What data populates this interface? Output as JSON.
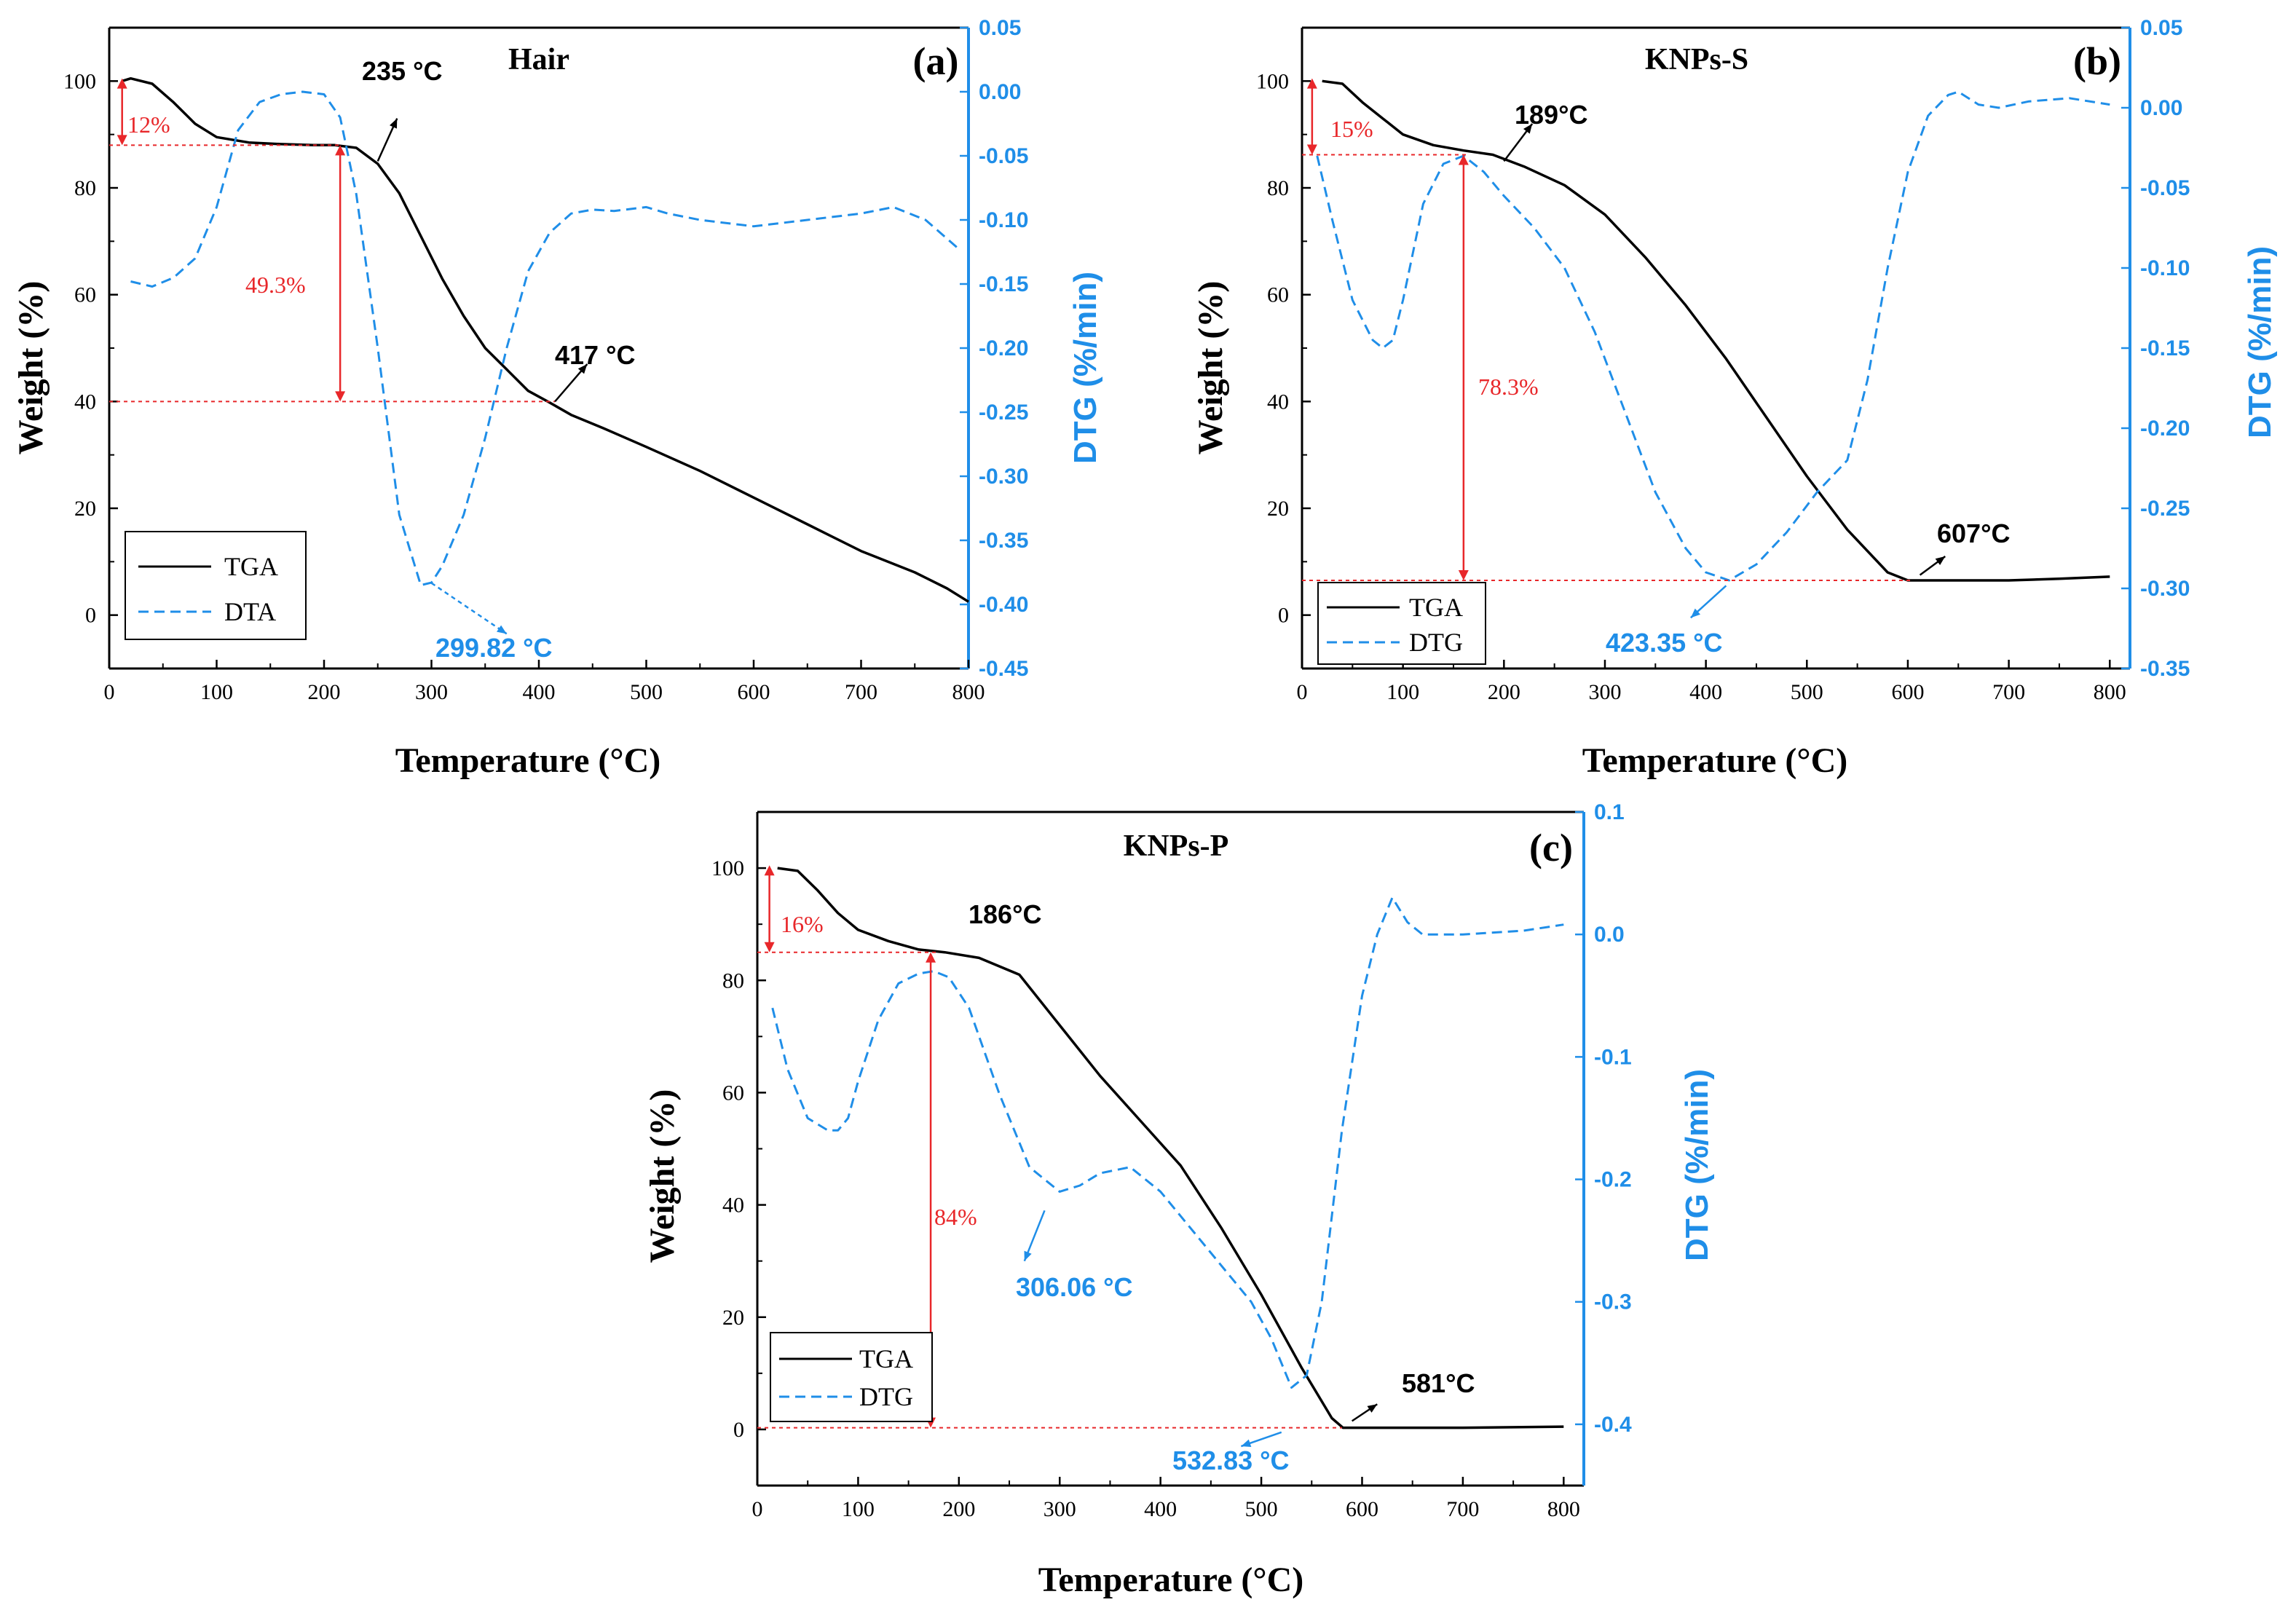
{
  "chart_data": [
    {
      "id": "a",
      "type": "line",
      "title": "Hair",
      "panel_label": "(a)",
      "xlabel": "Temperature (°C)",
      "ylabel": "Weight (%)",
      "y2label": "DTG (%/min)",
      "xlim": [
        0,
        800
      ],
      "ylim": [
        -10,
        110
      ],
      "y2lim": [
        -0.45,
        0.05
      ],
      "xticks": [
        0,
        100,
        200,
        300,
        400,
        500,
        600,
        700,
        800
      ],
      "yticks": [
        0,
        20,
        40,
        60,
        80,
        100
      ],
      "y2ticks": [
        -0.45,
        -0.4,
        -0.35,
        -0.3,
        -0.25,
        -0.2,
        -0.15,
        -0.1,
        -0.05,
        0.0,
        0.05
      ],
      "y2ticklabels": [
        "-0.45",
        "-0.40",
        "-0.35",
        "-0.30",
        "-0.25",
        "-0.20",
        "-0.15",
        "-0.10",
        "-0.05",
        "0.00",
        "0.05"
      ],
      "legend": [
        "TGA",
        "DTA"
      ],
      "series": [
        {
          "name": "TGA",
          "axis": "left",
          "x": [
            12,
            20,
            40,
            60,
            80,
            100,
            130,
            160,
            190,
            210,
            230,
            250,
            270,
            290,
            310,
            330,
            350,
            370,
            390,
            410,
            430,
            460,
            500,
            550,
            600,
            650,
            700,
            750,
            780,
            800
          ],
          "y": [
            100,
            100.5,
            99.5,
            96,
            92,
            89.5,
            88.5,
            88.2,
            88,
            88,
            87.5,
            84.5,
            79,
            71,
            63,
            56,
            50,
            46,
            42,
            39.8,
            37.5,
            35,
            31.5,
            27,
            22,
            17,
            12,
            8,
            5,
            2.5
          ]
        },
        {
          "name": "DTA",
          "axis": "right",
          "x": [
            20,
            40,
            60,
            80,
            100,
            120,
            140,
            160,
            180,
            200,
            215,
            230,
            250,
            270,
            290,
            300,
            310,
            330,
            350,
            370,
            390,
            410,
            430,
            450,
            470,
            500,
            520,
            550,
            600,
            650,
            700,
            730,
            760,
            790
          ],
          "y": [
            -0.148,
            -0.152,
            -0.145,
            -0.13,
            -0.09,
            -0.03,
            -0.008,
            -0.002,
            0.0,
            -0.002,
            -0.02,
            -0.08,
            -0.2,
            -0.33,
            -0.385,
            -0.383,
            -0.37,
            -0.33,
            -0.27,
            -0.2,
            -0.14,
            -0.11,
            -0.095,
            -0.092,
            -0.093,
            -0.09,
            -0.095,
            -0.1,
            -0.105,
            -0.1,
            -0.095,
            -0.09,
            -0.1,
            -0.122
          ]
        }
      ],
      "annotations": [
        {
          "text": "235 °C",
          "color": "black"
        },
        {
          "text": "417 °C",
          "color": "black"
        },
        {
          "text": "299.82 °C",
          "color": "blue"
        },
        {
          "text": "12%",
          "color": "red"
        },
        {
          "text": "49.3%",
          "color": "red"
        }
      ]
    },
    {
      "id": "b",
      "type": "line",
      "title": "KNPs-S",
      "panel_label": "(b)",
      "xlabel": "Temperature (°C)",
      "ylabel": "Weight (%)",
      "y2label": "DTG (%/min)",
      "xlim": [
        0,
        820
      ],
      "ylim": [
        -10,
        110
      ],
      "y2lim": [
        -0.35,
        0.05
      ],
      "xticks": [
        0,
        100,
        200,
        300,
        400,
        500,
        600,
        700,
        800
      ],
      "yticks": [
        0,
        20,
        40,
        60,
        80,
        100
      ],
      "y2ticks": [
        -0.35,
        -0.3,
        -0.25,
        -0.2,
        -0.15,
        -0.1,
        -0.05,
        0.0,
        0.05
      ],
      "y2ticklabels": [
        "-0.35",
        "-0.30",
        "-0.25",
        "-0.20",
        "-0.15",
        "-0.10",
        "-0.05",
        "0.00",
        "0.05"
      ],
      "legend": [
        "TGA",
        "DTG"
      ],
      "series": [
        {
          "name": "TGA",
          "axis": "left",
          "x": [
            20,
            40,
            60,
            80,
            100,
            130,
            160,
            189,
            220,
            260,
            300,
            340,
            380,
            420,
            460,
            500,
            540,
            580,
            600,
            607,
            650,
            700,
            750,
            800
          ],
          "y": [
            100,
            99.5,
            96,
            93,
            90,
            88,
            87,
            86.2,
            84,
            80.5,
            75,
            67,
            58,
            48,
            37,
            26,
            16,
            8,
            6.5,
            6.5,
            6.5,
            6.5,
            6.8,
            7.2
          ]
        },
        {
          "name": "DTG",
          "axis": "right",
          "x": [
            15,
            30,
            50,
            70,
            80,
            90,
            100,
            120,
            140,
            160,
            180,
            200,
            230,
            260,
            290,
            320,
            350,
            380,
            400,
            423,
            450,
            480,
            510,
            540,
            560,
            580,
            600,
            620,
            640,
            650,
            670,
            690,
            720,
            760,
            800
          ],
          "y": [
            -0.03,
            -0.07,
            -0.12,
            -0.145,
            -0.15,
            -0.145,
            -0.12,
            -0.06,
            -0.035,
            -0.03,
            -0.04,
            -0.055,
            -0.075,
            -0.1,
            -0.14,
            -0.19,
            -0.24,
            -0.275,
            -0.29,
            -0.295,
            -0.285,
            -0.265,
            -0.24,
            -0.22,
            -0.17,
            -0.1,
            -0.04,
            -0.005,
            0.008,
            0.01,
            0.002,
            0.0,
            0.004,
            0.006,
            0.002
          ]
        }
      ],
      "annotations": [
        {
          "text": "189°C",
          "color": "black"
        },
        {
          "text": "607°C",
          "color": "black"
        },
        {
          "text": "423.35 °C",
          "color": "blue"
        },
        {
          "text": "15%",
          "color": "red"
        },
        {
          "text": "78.3%",
          "color": "red"
        }
      ]
    },
    {
      "id": "c",
      "type": "line",
      "title": "KNPs-P",
      "panel_label": "(c)",
      "xlabel": "Temperature (°C)",
      "ylabel": "Weight (%)",
      "y2label": "DTG (%/min)",
      "xlim": [
        0,
        820
      ],
      "ylim": [
        -10,
        110
      ],
      "y2lim": [
        -0.45,
        0.1
      ],
      "xticks": [
        0,
        100,
        200,
        300,
        400,
        500,
        600,
        700,
        800
      ],
      "yticks": [
        0,
        20,
        40,
        60,
        80,
        100
      ],
      "y2ticks": [
        -0.4,
        -0.3,
        -0.2,
        -0.1,
        0.0,
        0.1
      ],
      "y2ticklabels": [
        "-0.4",
        "-0.3",
        "-0.2",
        "-0.1",
        "0.0",
        "0.1"
      ],
      "legend": [
        "TGA",
        "DTG"
      ],
      "series": [
        {
          "name": "TGA",
          "axis": "left",
          "x": [
            20,
            40,
            60,
            80,
            100,
            130,
            160,
            186,
            220,
            260,
            300,
            340,
            380,
            420,
            460,
            500,
            540,
            570,
            581,
            620,
            700,
            800
          ],
          "y": [
            100,
            99.5,
            96,
            92,
            89,
            87,
            85.5,
            85,
            84,
            81,
            72,
            63,
            55,
            47,
            36,
            24,
            11,
            2,
            0.3,
            0.3,
            0.3,
            0.5
          ]
        },
        {
          "name": "DTG",
          "axis": "right",
          "x": [
            15,
            30,
            50,
            70,
            80,
            90,
            100,
            120,
            140,
            160,
            175,
            190,
            210,
            240,
            270,
            300,
            320,
            340,
            370,
            400,
            430,
            460,
            490,
            510,
            530,
            545,
            560,
            580,
            600,
            615,
            630,
            645,
            660,
            700,
            760,
            800
          ],
          "y": [
            -0.06,
            -0.11,
            -0.15,
            -0.16,
            -0.16,
            -0.15,
            -0.12,
            -0.07,
            -0.04,
            -0.032,
            -0.03,
            -0.035,
            -0.06,
            -0.13,
            -0.19,
            -0.21,
            -0.205,
            -0.195,
            -0.19,
            -0.21,
            -0.24,
            -0.27,
            -0.3,
            -0.33,
            -0.37,
            -0.36,
            -0.3,
            -0.16,
            -0.05,
            0.0,
            0.03,
            0.01,
            0.0,
            0.0,
            0.003,
            0.008
          ]
        }
      ],
      "annotations": [
        {
          "text": "186°C",
          "color": "black"
        },
        {
          "text": "581°C",
          "color": "black"
        },
        {
          "text": "306.06 °C",
          "color": "blue"
        },
        {
          "text": "532.83 °C",
          "color": "blue"
        },
        {
          "text": "16%",
          "color": "red"
        },
        {
          "text": "84%",
          "color": "red"
        }
      ]
    }
  ],
  "colors": {
    "tga": "#000000",
    "dtg": "#1f8ee8",
    "guide": "#e8272a"
  }
}
